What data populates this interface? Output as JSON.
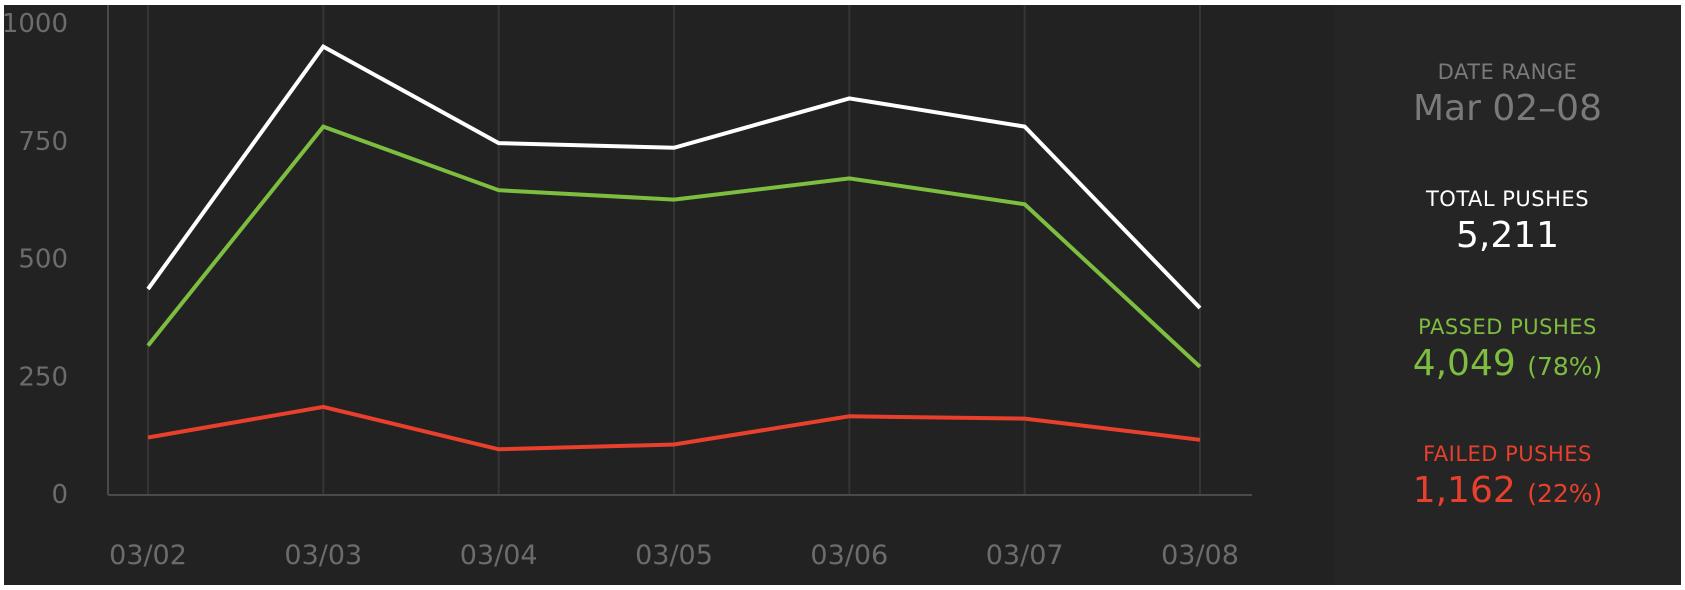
{
  "chart_data": {
    "type": "line",
    "title": "",
    "xlabel": "",
    "ylabel": "",
    "categories": [
      "03/02",
      "03/03",
      "03/04",
      "03/05",
      "03/06",
      "03/07",
      "03/08"
    ],
    "ylim": [
      0,
      1000
    ],
    "yticks": [
      "1000",
      "750",
      "500",
      "250",
      "0"
    ],
    "grid": "vertical",
    "series": [
      {
        "key": "total",
        "color": "#ffffff",
        "values": [
          435,
          950,
          745,
          735,
          840,
          780,
          395
        ]
      },
      {
        "key": "passed",
        "color": "#7dbd3f",
        "values": [
          315,
          780,
          645,
          625,
          670,
          615,
          270
        ]
      },
      {
        "key": "failed",
        "color": "#e8402c",
        "values": [
          120,
          185,
          95,
          105,
          165,
          160,
          115
        ]
      }
    ]
  },
  "stats": {
    "date_range": {
      "label": "DATE RANGE",
      "value": "Mar 02–08",
      "color": "#7a7a7a"
    },
    "total": {
      "label": "TOTAL PUSHES",
      "value": "5,211",
      "color": "#ffffff"
    },
    "passed": {
      "label": "PASSED PUSHES",
      "value": "4,049",
      "pct": "(78%)",
      "color": "#7dbd3f"
    },
    "failed": {
      "label": "FAILED PUSHES",
      "value": "1,162",
      "pct": "(22%)",
      "color": "#e8402c"
    }
  }
}
